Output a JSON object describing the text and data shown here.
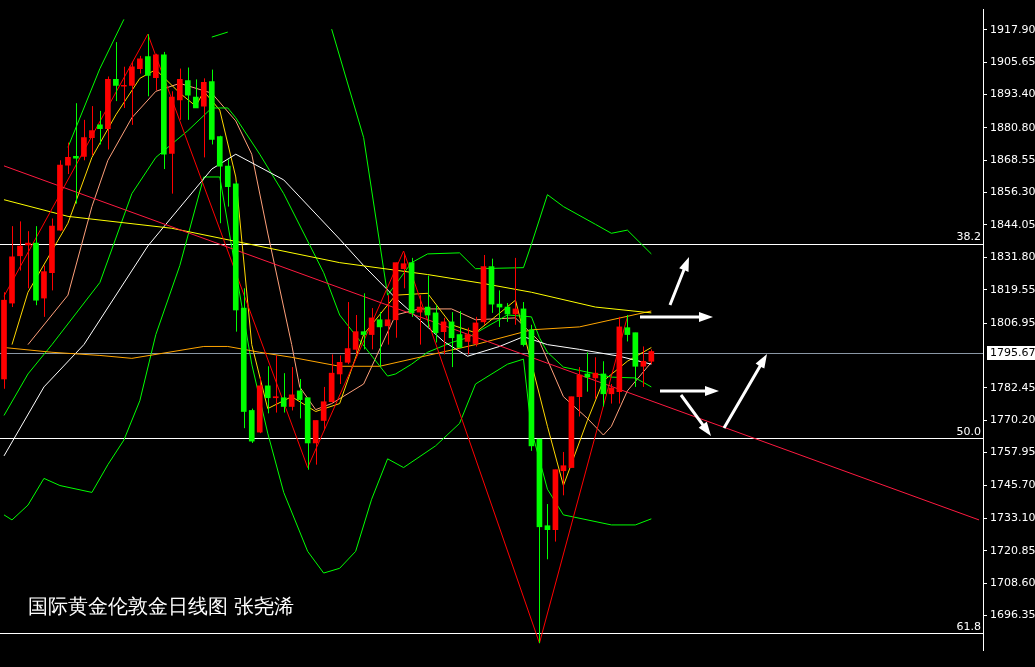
{
  "chart_data": {
    "type": "candlestick",
    "title": "国际黄金伦敦金日线图 张尧浠",
    "categories": [
      null,
      null,
      null,
      null,
      null,
      null,
      null,
      null,
      null,
      null,
      null,
      null,
      null,
      null,
      null,
      null,
      null,
      null,
      null,
      null,
      null,
      null,
      null,
      null,
      null,
      null,
      null,
      null,
      null,
      null,
      null,
      null,
      null,
      null,
      null,
      null,
      null,
      null,
      null,
      null,
      null,
      null,
      null,
      null,
      null,
      null,
      null,
      null,
      null,
      null,
      null,
      null,
      null,
      null,
      null,
      null,
      null,
      null,
      null,
      null,
      null,
      null,
      null,
      null,
      null,
      null,
      null,
      null,
      null,
      null,
      null,
      null,
      null,
      null,
      null,
      null,
      null,
      null,
      null,
      null,
      null,
      null,
      null,
      null,
      null,
      null,
      null,
      null,
      null,
      null,
      null,
      null,
      null,
      null,
      null,
      null,
      null,
      null,
      null,
      null,
      null,
      null,
      null,
      null,
      null,
      null,
      null,
      null,
      null,
      null,
      null,
      null,
      null,
      null,
      null,
      null,
      null,
      null,
      null,
      null,
      null,
      null,
      null
    ],
    "ohlc": [
      [
        1785.8,
        1818.6,
        1782.1,
        1815.6
      ],
      [
        1814.5,
        1843.6,
        1813.0,
        1832.0
      ],
      [
        1832.4,
        1845.4,
        1826.8,
        1836.1
      ],
      [
        1836.5,
        1841.7,
        1820.1,
        1837.2
      ],
      [
        1837.2,
        1843.6,
        1813.7,
        1815.6
      ],
      [
        1816.4,
        1828.7,
        1809.3,
        1826.4
      ],
      [
        1826.0,
        1846.5,
        1819.3,
        1843.6
      ],
      [
        1842.1,
        1868.5,
        1841.7,
        1866.7
      ],
      [
        1866.7,
        1875.2,
        1863.3,
        1869.6
      ],
      [
        1870.0,
        1890.1,
        1852.1,
        1869.3
      ],
      [
        1870.0,
        1883.8,
        1868.5,
        1877.1
      ],
      [
        1877.1,
        1889.0,
        1870.4,
        1879.7
      ],
      [
        1881.9,
        1887.2,
        1874.5,
        1880.5
      ],
      [
        1880.5,
        1900.2,
        1872.6,
        1899.1
      ],
      [
        1899.1,
        1913.2,
        1890.9,
        1896.8
      ],
      [
        1896.5,
        1903.9,
        1888.3,
        1896.8
      ],
      [
        1896.8,
        1905.8,
        1881.9,
        1903.9
      ],
      [
        1903.2,
        1908.0,
        1901.3,
        1906.9
      ],
      [
        1907.7,
        1916.2,
        1892.7,
        1900.6
      ],
      [
        1899.8,
        1908.8,
        1895.0,
        1908.4
      ],
      [
        1908.4,
        1909.5,
        1865.2,
        1870.8
      ],
      [
        1871.1,
        1894.6,
        1855.9,
        1892.4
      ],
      [
        1891.3,
        1903.2,
        1883.8,
        1899.1
      ],
      [
        1898.7,
        1903.6,
        1883.8,
        1893.1
      ],
      [
        1892.4,
        1899.1,
        1888.3,
        1888.3
      ],
      [
        1889.0,
        1899.5,
        1869.6,
        1898.0
      ],
      [
        1898.3,
        1902.8,
        1874.5,
        1876.4
      ],
      [
        1877.5,
        1877.8,
        1844.7,
        1866.3
      ],
      [
        1866.3,
        1868.9,
        1851.0,
        1858.5
      ],
      [
        1859.6,
        1860.3,
        1803.7,
        1811.9
      ],
      [
        1812.6,
        1820.1,
        1767.2,
        1773.5
      ],
      [
        1773.9,
        1774.6,
        1761.6,
        1762.3
      ],
      [
        1765.7,
        1786.5,
        1765.3,
        1783.2
      ],
      [
        1783.2,
        1790.6,
        1772.8,
        1778.7
      ],
      [
        1778.7,
        1794.7,
        1773.1,
        1779.1
      ],
      [
        1778.7,
        1788.0,
        1773.1,
        1775.4
      ],
      [
        1775.4,
        1790.3,
        1773.9,
        1779.8
      ],
      [
        1781.3,
        1785.8,
        1770.9,
        1778.0
      ],
      [
        1778.7,
        1778.7,
        1751.5,
        1761.6
      ],
      [
        1761.6,
        1770.1,
        1753.4,
        1770.1
      ],
      [
        1770.1,
        1782.8,
        1766.4,
        1777.2
      ],
      [
        1777.2,
        1795.1,
        1776.9,
        1788.0
      ],
      [
        1787.7,
        1794.7,
        1783.9,
        1792.1
      ],
      [
        1792.1,
        1814.9,
        1791.4,
        1797.3
      ],
      [
        1797.0,
        1810.0,
        1795.1,
        1803.7
      ],
      [
        1803.7,
        1818.2,
        1797.0,
        1802.6
      ],
      [
        1802.6,
        1812.6,
        1797.0,
        1808.9
      ],
      [
        1808.2,
        1811.1,
        1790.6,
        1805.5
      ],
      [
        1805.9,
        1817.5,
        1798.8,
        1808.2
      ],
      [
        1808.2,
        1829.8,
        1801.4,
        1829.8
      ],
      [
        1827.5,
        1833.1,
        1820.1,
        1829.4
      ],
      [
        1829.8,
        1831.6,
        1809.3,
        1810.8
      ],
      [
        1811.1,
        1817.5,
        1798.8,
        1813.0
      ],
      [
        1813.0,
        1824.9,
        1805.2,
        1810.0
      ],
      [
        1810.8,
        1813.7,
        1799.6,
        1803.3
      ],
      [
        1803.7,
        1808.9,
        1795.1,
        1807.4
      ],
      [
        1807.4,
        1811.1,
        1790.3,
        1801.4
      ],
      [
        1802.6,
        1811.5,
        1797.7,
        1797.7
      ],
      [
        1800.0,
        1805.2,
        1795.1,
        1802.6
      ],
      [
        1799.2,
        1809.3,
        1798.1,
        1807.0
      ],
      [
        1807.4,
        1832.7,
        1806.3,
        1828.3
      ],
      [
        1828.3,
        1831.3,
        1810.8,
        1814.1
      ],
      [
        1814.1,
        1819.3,
        1805.5,
        1813.0
      ],
      [
        1813.0,
        1814.5,
        1807.4,
        1810.4
      ],
      [
        1810.4,
        1831.6,
        1806.3,
        1812.3
      ],
      [
        1812.3,
        1814.9,
        1798.1,
        1798.8
      ],
      [
        1804.4,
        1806.3,
        1758.6,
        1760.5
      ],
      [
        1763.1,
        1763.1,
        1685.9,
        1729.9
      ],
      [
        1730.3,
        1738.5,
        1717.6,
        1728.8
      ],
      [
        1728.8,
        1751.5,
        1724.3,
        1751.5
      ],
      [
        1751.1,
        1758.2,
        1741.8,
        1753.0
      ],
      [
        1752.3,
        1779.1,
        1752.3,
        1779.1
      ],
      [
        1779.1,
        1790.3,
        1771.6,
        1787.3
      ],
      [
        1787.7,
        1795.9,
        1781.0,
        1786.5
      ],
      [
        1786.2,
        1794.0,
        1778.3,
        1788.0
      ],
      [
        1787.7,
        1792.5,
        1775.4,
        1780.2
      ],
      [
        1780.2,
        1783.9,
        1776.5,
        1782.4
      ],
      [
        1781.0,
        1809.3,
        1776.5,
        1805.5
      ],
      [
        1805.2,
        1810.0,
        1800.0,
        1802.6
      ],
      [
        1803.3,
        1803.3,
        1782.8,
        1790.6
      ],
      [
        1790.6,
        1798.1,
        1782.8,
        1792.5
      ],
      [
        1792.5,
        1797.0,
        1791.4,
        1796.2
      ],
      null,
      null,
      null,
      null,
      null,
      null,
      null,
      null,
      null,
      null,
      null,
      null,
      null,
      null,
      null,
      null,
      null,
      null,
      null,
      null,
      null,
      null,
      null,
      null,
      null,
      null,
      null,
      null,
      null,
      null,
      null,
      null,
      null,
      null,
      null,
      null,
      null,
      null,
      null,
      null,
      null
    ],
    "colors": [
      "#ff0000",
      "#ff0000",
      "#ff0000",
      "#ff0000",
      "#00ff00",
      "#ff0000",
      "#ff0000",
      "#ff0000",
      "#ff0000",
      "#00ff00",
      "#ff0000",
      "#ff0000",
      "#00ff00",
      "#ff0000",
      "#00ff00",
      "#ff0000",
      "#ff0000",
      "#ff0000",
      "#00ff00",
      "#ff0000",
      "#00ff00",
      "#ff0000",
      "#ff0000",
      "#00ff00",
      "#00ff00",
      "#ff0000",
      "#00ff00",
      "#00ff00",
      "#00ff00",
      "#00ff00",
      "#00ff00",
      "#00ff00",
      "#ff0000",
      "#00ff00",
      "#ff0000",
      "#00ff00",
      "#ff0000",
      "#00ff00",
      "#00ff00",
      "#ff0000",
      "#ff0000",
      "#ff0000",
      "#ff0000",
      "#ff0000",
      "#ff0000",
      "#00ff00",
      "#ff0000",
      "#00ff00",
      "#ff0000",
      "#ff0000",
      "#ff0000",
      "#00ff00",
      "#ff0000",
      "#00ff00",
      "#00ff00",
      "#ff0000",
      "#00ff00",
      "#00ff00",
      "#ff0000",
      "#ff0000",
      "#ff0000",
      "#00ff00",
      "#00ff00",
      "#00ff00",
      "#ff0000",
      "#00ff00",
      "#00ff00",
      "#00ff00",
      "#00ff00",
      "#ff0000",
      "#ff0000",
      "#ff0000",
      "#ff0000",
      "#00ff00",
      "#ff0000",
      "#00ff00",
      "#ff0000",
      "#ff0000",
      "#00ff00",
      "#00ff00",
      "#ff0000",
      "#ff0000",
      null,
      null,
      null,
      null,
      null,
      null,
      null,
      null,
      null,
      null,
      null,
      null,
      null,
      null,
      null,
      null,
      null,
      null,
      null,
      null,
      null,
      null,
      null,
      null,
      null,
      null,
      null,
      null,
      null,
      null,
      null,
      null,
      null,
      null,
      null,
      null,
      null,
      null,
      null,
      null,
      null
    ],
    "series": [
      {
        "type": "line",
        "color": "#ff1a40",
        "values": [
          1866.4,
          null,
          null,
          null,
          null,
          null,
          null,
          null,
          null,
          null,
          null,
          null,
          null,
          null,
          null,
          null,
          null,
          null,
          null,
          null,
          null,
          null,
          null,
          null,
          null,
          null,
          null,
          null,
          null,
          null,
          null,
          null,
          null,
          null,
          null,
          null,
          null,
          null,
          null,
          null,
          null,
          null,
          null,
          null,
          null,
          null,
          null,
          null,
          null,
          null,
          null,
          null,
          null,
          null,
          null,
          null,
          null,
          null,
          null,
          null,
          null,
          null,
          null,
          null,
          null,
          null,
          null,
          null,
          null,
          null,
          null,
          null,
          null,
          null,
          null,
          null,
          null,
          null,
          null,
          null,
          null,
          null,
          null,
          null,
          null,
          null,
          null,
          null,
          null,
          null,
          null,
          null,
          null,
          null,
          null,
          null,
          null,
          null,
          null,
          null,
          null,
          null,
          null,
          null,
          null,
          null,
          null,
          null,
          null,
          null,
          null,
          null,
          null,
          null,
          null,
          null,
          null,
          null,
          null,
          null,
          null,
          null,
          1732.5
        ]
      },
      {
        "type": "line",
        "color": "#ff0000",
        "values": [
          1817.1,
          null,
          null,
          null,
          null,
          null,
          null,
          null,
          null,
          null,
          null,
          null,
          null,
          null,
          null,
          null,
          null,
          null,
          1916.2,
          null,
          null,
          null,
          null,
          null,
          null,
          null,
          null,
          null,
          null,
          null,
          null,
          null,
          null,
          null,
          null,
          null,
          null,
          null,
          1752.3,
          null,
          null,
          null,
          null,
          null,
          null,
          null,
          null,
          null,
          null,
          null,
          1834.2,
          null,
          null,
          null,
          null,
          null,
          null,
          null,
          null,
          null,
          null,
          null,
          null,
          null,
          null,
          null,
          null,
          1685.9,
          null,
          null,
          null,
          null,
          null,
          null,
          null,
          null,
          null,
          null,
          1809.3,
          null,
          null,
          null,
          null,
          null,
          null,
          null,
          null,
          null,
          null,
          null,
          null,
          null,
          null,
          null,
          null,
          null,
          null,
          null,
          null,
          null,
          null,
          null,
          null,
          null,
          null,
          null,
          null,
          null,
          null,
          null,
          null,
          null,
          null,
          null,
          null,
          null,
          null,
          null,
          null,
          null,
          null,
          null,
          null
        ]
      },
      {
        "type": "line",
        "color": "#ffff00",
        "values": [
          1853.6,
          null,
          null,
          null,
          null,
          null,
          null,
          null,
          1847.3,
          null,
          null,
          null,
          null,
          null,
          null,
          null,
          null,
          null,
          null,
          null,
          null,
          1842.8,
          null,
          null,
          null,
          null,
          null,
          null,
          null,
          null,
          null,
          null,
          null,
          null,
          null,
          null,
          null,
          null,
          null,
          null,
          null,
          null,
          1829.8,
          null,
          null,
          null,
          null,
          null,
          null,
          null,
          null,
          null,
          null,
          1825.3,
          null,
          null,
          null,
          null,
          null,
          null,
          1821.9,
          null,
          null,
          null,
          null,
          null,
          1818.6,
          null,
          null,
          null,
          null,
          null,
          null,
          null,
          1813.0,
          null,
          null,
          null,
          null,
          null,
          null,
          1810.8,
          null,
          null,
          null,
          null,
          null,
          null,
          null,
          null,
          null,
          null,
          null,
          null,
          null,
          null,
          null,
          null,
          null,
          null,
          null,
          null,
          null,
          null,
          null,
          null,
          null,
          null,
          null,
          null,
          null,
          null,
          null,
          null,
          null,
          null,
          null,
          null,
          null,
          null,
          null,
          null,
          null
        ]
      },
      {
        "type": "line",
        "color": "#ffa500",
        "values": [
          1797.7,
          null,
          null,
          null,
          null,
          null,
          1795.9,
          null,
          null,
          null,
          null,
          null,
          1794.7,
          null,
          null,
          null,
          1793.6,
          null,
          null,
          null,
          null,
          null,
          null,
          null,
          null,
          1798.1,
          null,
          null,
          1798.1,
          null,
          null,
          null,
          1795.9,
          null,
          null,
          null,
          1794.0,
          null,
          null,
          null,
          null,
          null,
          1790.6,
          null,
          null,
          null,
          null,
          1790.6,
          null,
          null,
          null,
          null,
          null,
          null,
          null,
          null,
          null,
          null,
          null,
          1798.8,
          null,
          null,
          null,
          null,
          null,
          null,
          1804.4,
          null,
          null,
          null,
          null,
          null,
          1805.5,
          null,
          null,
          null,
          null,
          null,
          null,
          null,
          null,
          1811.5,
          null,
          null,
          null,
          null,
          null,
          null,
          null,
          null,
          null,
          null,
          null,
          null,
          null,
          null,
          null,
          null,
          null,
          null,
          null,
          null,
          null,
          null,
          null,
          null,
          null,
          null,
          null,
          null,
          null,
          null,
          null,
          null,
          null,
          null,
          null,
          null,
          null,
          null,
          null,
          null,
          null
        ]
      },
      {
        "type": "line",
        "color": "#ffffff",
        "values": [
          1756.7,
          null,
          null,
          null,
          null,
          1782.8,
          null,
          null,
          null,
          null,
          1798.8,
          null,
          null,
          null,
          null,
          null,
          null,
          null,
          1836.1,
          null,
          null,
          null,
          null,
          null,
          null,
          null,
          1865.2,
          null,
          null,
          1870.8,
          null,
          null,
          null,
          null,
          null,
          1861.1,
          null,
          null,
          null,
          null,
          null,
          null,
          1838.7,
          null,
          null,
          1828.7,
          null,
          null,
          null,
          1816.4,
          null,
          null,
          null,
          null,
          null,
          1800.0,
          null,
          null,
          1794.4,
          null,
          null,
          null,
          1798.1,
          null,
          null,
          1801.8,
          null,
          null,
          1798.8,
          null,
          null,
          null,
          1797.0,
          null,
          null,
          null,
          null,
          1794.4,
          null,
          null,
          null,
          1791.4,
          null,
          null,
          null,
          null,
          null,
          null,
          null,
          null,
          null,
          null,
          null,
          null,
          null,
          null,
          null,
          null,
          null,
          null,
          null,
          null,
          null,
          null,
          null,
          null,
          null,
          null,
          null,
          null,
          null,
          null,
          null,
          null,
          null,
          null,
          null,
          null,
          null,
          null,
          null,
          null,
          null
        ]
      },
      {
        "type": "line",
        "color": "#00ff00",
        "values": [
          null,
          null,
          null,
          null,
          null,
          null,
          null,
          null,
          1873.4,
          null,
          null,
          null,
          1903.2,
          null,
          null,
          1921.8,
          null,
          null,
          null,
          null,
          null,
          null,
          null,
          null,
          null,
          null,
          null,
          null,
          null,
          null,
          null,
          null,
          null,
          null,
          null,
          null,
          null,
          null,
          null,
          null,
          null,
          null,
          null,
          null,
          null,
          null,
          null,
          null,
          null,
          null,
          null,
          null,
          null,
          null,
          null,
          null,
          null,
          null,
          null,
          null,
          null,
          null,
          null,
          null,
          null,
          null,
          null,
          null,
          null,
          null,
          null,
          null,
          null,
          null,
          null,
          null,
          null,
          null,
          null,
          null,
          null,
          null,
          null,
          null,
          null,
          null,
          null,
          null,
          null,
          null,
          null,
          null,
          null,
          null,
          null,
          null,
          null,
          null,
          null,
          null,
          null,
          null,
          null,
          null,
          null,
          null,
          null,
          null,
          null,
          null,
          null,
          null,
          null,
          null,
          null,
          null,
          null,
          null,
          null,
          null,
          null,
          null,
          null
        ]
      },
      {
        "type": "line",
        "color": "#00ff00",
        "values": [
          null,
          null,
          null,
          null,
          null,
          null,
          null,
          null,
          null,
          null,
          null,
          null,
          null,
          null,
          null,
          null,
          null,
          null,
          null,
          null,
          null,
          null,
          null,
          null,
          null,
          null,
          1915.1,
          null,
          1917.0,
          null,
          null,
          null,
          null,
          null,
          null,
          null,
          null,
          null,
          null,
          null,
          null,
          null,
          null,
          null,
          null,
          null,
          null,
          null,
          null,
          null,
          null,
          null,
          null,
          null,
          null,
          null,
          null,
          null,
          null,
          null,
          null,
          null,
          null,
          null,
          null,
          null,
          null,
          null,
          null,
          null,
          null,
          null,
          null,
          null,
          null,
          null,
          null,
          null,
          null,
          null,
          null,
          null,
          null,
          null,
          null,
          null,
          null,
          null,
          null,
          null,
          null,
          null,
          null,
          null,
          null,
          null,
          null,
          null,
          null,
          null,
          null,
          null,
          null,
          null,
          null,
          null,
          null,
          null,
          null,
          null,
          null,
          null,
          null,
          null,
          null,
          null,
          null,
          null,
          null,
          null,
          null,
          null,
          null
        ]
      },
      {
        "type": "line",
        "color": "#00ff00",
        "values": [
          null,
          null,
          null,
          null,
          null,
          null,
          null,
          null,
          null,
          null,
          null,
          null,
          null,
          null,
          null,
          null,
          null,
          null,
          null,
          null,
          null,
          null,
          null,
          null,
          null,
          null,
          null,
          null,
          null,
          null,
          null,
          null,
          null,
          null,
          null,
          null,
          null,
          null,
          null,
          null,
          null,
          1918.1,
          null,
          null,
          null,
          1877.1,
          null,
          null,
          1817.5,
          null,
          null,
          1829.8,
          null,
          1833.1,
          null,
          null,
          null,
          1833.5,
          null,
          1827.5,
          null,
          null,
          null,
          null,
          null,
          1827.9,
          1836.8,
          null,
          1855.5,
          null,
          1851.0,
          null,
          null,
          null,
          1844.3,
          null,
          1840.9,
          null,
          1842.1,
          null,
          null,
          1833.1,
          null,
          null,
          null,
          null,
          null,
          null,
          null,
          null,
          null,
          null,
          null,
          null,
          null,
          null,
          null,
          null,
          null,
          null,
          null,
          null,
          null,
          null,
          null,
          null,
          null,
          null,
          null,
          null,
          null,
          null,
          null,
          null,
          null,
          null,
          null,
          null,
          null,
          null,
          null,
          null,
          null
        ]
      },
      {
        "type": "line",
        "color": "#00ff00",
        "values": [
          1772.0,
          null,
          null,
          1787.7,
          null,
          null,
          1798.8,
          null,
          null,
          null,
          null,
          null,
          1822.3,
          null,
          null,
          null,
          1855.9,
          null,
          null,
          1869.6,
          null,
          null,
          null,
          1879.7,
          null,
          null,
          1888.3,
          null,
          1888.3,
          1884.6,
          null,
          null,
          1870.8,
          null,
          null,
          1855.9,
          null,
          null,
          null,
          null,
          1826.0,
          null,
          1810.0,
          null,
          null,
          null,
          null,
          null,
          1786.9,
          1787.7,
          null,
          1791.4,
          null,
          1795.9,
          null,
          null,
          1799.6,
          null,
          1801.4,
          null,
          null,
          null,
          null,
          1810.0,
          null,
          null,
          1809.3,
          1801.4,
          1795.9,
          null,
          1790.3,
          null,
          null,
          null,
          null,
          null,
          1786.5,
          null,
          null,
          1786.2,
          null,
          1782.8,
          null,
          null,
          null,
          null,
          null,
          null,
          null,
          null,
          null,
          null,
          null,
          null,
          null,
          null,
          null,
          null,
          null,
          null,
          null,
          null,
          null,
          null,
          null,
          null,
          null,
          null,
          null,
          null,
          null,
          null,
          null,
          null,
          null,
          null,
          null,
          null,
          null,
          null,
          null,
          null,
          null
        ]
      },
      {
        "type": "line",
        "color": "#00ff00",
        "values": [
          1734.4,
          1732.5,
          null,
          1738.1,
          null,
          1748.2,
          null,
          1745.5,
          null,
          null,
          null,
          1742.9,
          null,
          1753.4,
          null,
          1762.7,
          null,
          1777.6,
          null,
          1802.6,
          null,
          null,
          1828.7,
          null,
          null,
          1862.2,
          null,
          1862.2,
          null,
          null,
          null,
          1791.4,
          null,
          1765.3,
          null,
          1742.9,
          null,
          null,
          1720.6,
          null,
          1712.4,
          null,
          1714.2,
          null,
          1720.6,
          null,
          1740.3,
          null,
          1755.6,
          null,
          1752.3,
          null,
          null,
          null,
          1760.5,
          null,
          null,
          1769.0,
          null,
          1783.9,
          null,
          null,
          null,
          1791.4,
          null,
          1793.3,
          1766.4,
          null,
          1744.1,
          null,
          1734.4,
          null,
          null,
          null,
          null,
          null,
          1730.6,
          null,
          null,
          1730.6,
          null,
          1732.9,
          null,
          null,
          null,
          null,
          null,
          null,
          null,
          null,
          null,
          null,
          null,
          null,
          null,
          null,
          null,
          null,
          null,
          null,
          null,
          null,
          null,
          null,
          null,
          null,
          null,
          null,
          null,
          null,
          null,
          null,
          null,
          null,
          null,
          null,
          null,
          null,
          null,
          null,
          null,
          null,
          null
        ]
      },
      {
        "type": "line",
        "color": "#ffd700",
        "values": [
          null,
          1798.8,
          null,
          1818.6,
          null,
          null,
          null,
          null,
          1844.7,
          null,
          null,
          1869.6,
          null,
          null,
          1885.7,
          null,
          null,
          1899.5,
          null,
          1902.8,
          null,
          null,
          1893.9,
          null,
          1889.0,
          1894.6,
          null,
          1887.5,
          null,
          1862.2,
          null,
          1798.8,
          null,
          1774.6,
          null,
          null,
          1779.1,
          null,
          null,
          1773.5,
          null,
          null,
          1776.5,
          null,
          null,
          1802.6,
          null,
          null,
          null,
          1817.5,
          null,
          null,
          null,
          1818.2,
          null,
          null,
          1806.3,
          null,
          null,
          1803.3,
          null,
          null,
          null,
          null,
          1815.6,
          null,
          null,
          null,
          1767.9,
          null,
          1745.5,
          null,
          null,
          1770.1,
          null,
          1785.1,
          null,
          null,
          1792.5,
          null,
          null,
          1797.7,
          null,
          null,
          null,
          null,
          null,
          null,
          null,
          null,
          null,
          null,
          null,
          null,
          null,
          null,
          null,
          null,
          null,
          null,
          null,
          null,
          null,
          null,
          null,
          null,
          null,
          null,
          null,
          null,
          null,
          null,
          null,
          null,
          null,
          null,
          null,
          null,
          null,
          null,
          null,
          null,
          null
        ]
      },
      {
        "type": "line",
        "color": "#ffa07a",
        "values": [
          null,
          null,
          null,
          1798.8,
          null,
          null,
          null,
          null,
          1817.5,
          null,
          null,
          1851.0,
          null,
          1868.5,
          null,
          null,
          1884.6,
          null,
          null,
          1894.6,
          null,
          null,
          1897.6,
          null,
          null,
          null,
          1893.9,
          null,
          null,
          1883.4,
          null,
          1870.8,
          null,
          1841.0,
          null,
          null,
          1798.8,
          1782.8,
          null,
          1774.2,
          null,
          1776.5,
          null,
          null,
          null,
          1783.9,
          null,
          null,
          null,
          1810.0,
          null,
          null,
          1812.3,
          null,
          null,
          null,
          1812.3,
          null,
          null,
          1808.2,
          null,
          null,
          null,
          null,
          1808.9,
          null,
          null,
          1800.0,
          null,
          null,
          1779.1,
          null,
          null,
          1770.9,
          null,
          1764.6,
          1767.9,
          null,
          1781.3,
          null,
          null,
          1792.1,
          null,
          null,
          null,
          null,
          null,
          null,
          null,
          null,
          null,
          null,
          null,
          null,
          null,
          null,
          null,
          null,
          null,
          null,
          null,
          null,
          null,
          null,
          null,
          null,
          null,
          null,
          null,
          null,
          null,
          null,
          null,
          null,
          null,
          null,
          null,
          null,
          null,
          null,
          null,
          null,
          null
        ]
      }
    ],
    "ylim": [
      1683.3,
      1925.5
    ],
    "yticks": [
      {
        "value": 1917.9,
        "label": "1917.90"
      },
      1905.65,
      {
        "value": 1893.4,
        "label": "1893.40"
      },
      {
        "value": 1880.8,
        "label": "1880.80"
      },
      1868.55,
      {
        "value": 1856.3,
        "label": "1856.30"
      },
      1844.05,
      {
        "value": 1831.8,
        "label": "1831.80"
      },
      1819.55,
      1806.95,
      1782.45,
      {
        "value": 1770.2,
        "label": "1770.20"
      },
      1757.95,
      {
        "value": 1745.7,
        "label": "1745.70"
      },
      {
        "value": 1733.1,
        "label": "1733.10"
      },
      1720.85,
      {
        "value": 1708.6,
        "label": "1708.60"
      },
      1696.35
    ],
    "ref_lines": [
      {
        "axis": "y",
        "value": 1836.8,
        "color": "#ffffff"
      },
      {
        "axis": "y",
        "value": 1763.4,
        "color": "#ffffff"
      },
      {
        "axis": "y",
        "value": 1689.6,
        "color": "#ffffff"
      },
      {
        "axis": "y",
        "value": 1795.67,
        "label": "1795.67",
        "color": "#8a97a5"
      }
    ],
    "annotations": [
      {
        "text": "38.2",
        "y": 1836.8
      },
      {
        "text": "50.0",
        "y": 1763.4
      },
      {
        "text": "61.8",
        "y": 1689.6
      }
    ],
    "grid": false,
    "legend": false,
    "tick_labels": "y"
  }
}
